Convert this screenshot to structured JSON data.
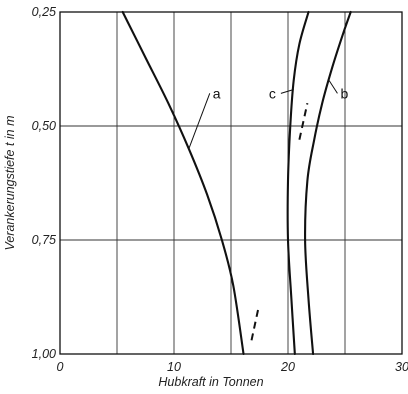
{
  "chart_data": {
    "type": "line",
    "xlabel": "Hubkraft in Tonnen",
    "ylabel": "Verankerungstiefe t in m",
    "xlim": [
      0,
      30
    ],
    "ylim": [
      0.25,
      1.0
    ],
    "y_inverted": true,
    "grid": true,
    "x_ticks": [
      "0",
      "10",
      "20",
      "30"
    ],
    "y_ticks": [
      "0,25",
      "0,50",
      "0,75",
      "1,00"
    ],
    "series": [
      {
        "name": "a",
        "x": [
          5.5,
          7.5,
          9.5,
          11.3,
          12.9,
          14.2,
          15.2,
          16.1
        ],
        "y": [
          0.25,
          0.35,
          0.45,
          0.55,
          0.65,
          0.75,
          0.85,
          1.0
        ]
      },
      {
        "name": "b",
        "x": [
          25.5,
          24.8,
          23.9,
          23.0,
          22.3,
          21.7,
          21.5,
          21.8,
          22.2
        ],
        "y": [
          0.25,
          0.3,
          0.37,
          0.45,
          0.53,
          0.62,
          0.75,
          0.88,
          1.0
        ]
      },
      {
        "name": "c",
        "x": [
          21.8,
          21.0,
          20.5,
          20.2,
          20.0,
          20.0,
          20.3,
          20.6
        ],
        "y": [
          0.25,
          0.32,
          0.4,
          0.5,
          0.62,
          0.75,
          0.88,
          1.0
        ]
      }
    ],
    "dashed_extensions": [
      {
        "x": [
          21.0,
          21.7
        ],
        "y": [
          0.53,
          0.45
        ]
      },
      {
        "x": [
          16.8,
          17.4
        ],
        "y": [
          0.97,
          0.9
        ]
      }
    ],
    "curve_labels": [
      {
        "text": "a",
        "x": 11.3,
        "y": 0.55,
        "label_x": 13.4,
        "label_y": 0.435
      },
      {
        "text": "c",
        "x": 20.5,
        "y": 0.42,
        "label_x": 18.5,
        "label_y": 0.435
      },
      {
        "text": "b",
        "x": 23.6,
        "y": 0.4,
        "label_x": 24.6,
        "label_y": 0.435
      }
    ]
  }
}
